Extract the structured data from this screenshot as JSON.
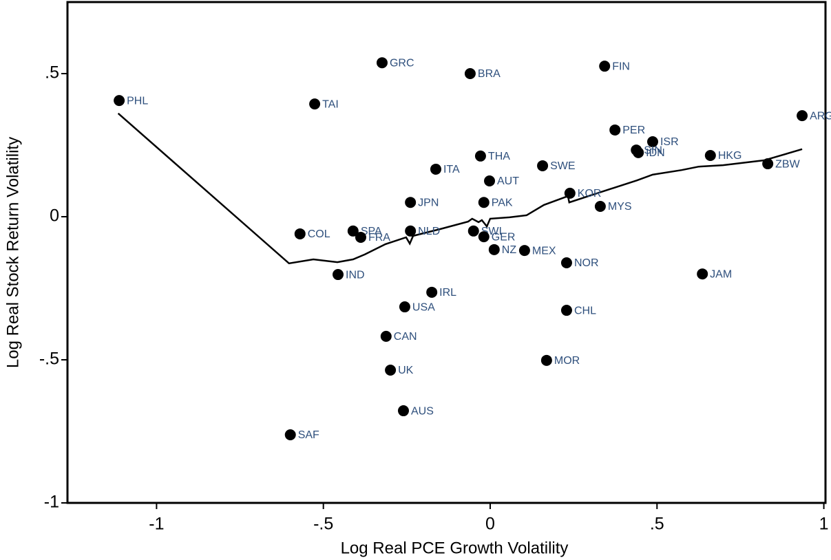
{
  "chart_data": {
    "type": "scatter",
    "xlabel": "Log Real PCE Growth Volatility",
    "ylabel": "Log Real Stock Return Volatility",
    "xlim": [
      -1.267,
      1.005
    ],
    "ylim": [
      -1,
      0.75
    ],
    "xticks": [
      -1,
      {
        "value": -0.5,
        "label": "-.5"
      },
      0,
      {
        "value": 0.5,
        "label": ".5"
      },
      1
    ],
    "yticks": [
      -1,
      {
        "value": -0.5,
        "label": "-.5"
      },
      0,
      {
        "value": 0.5,
        "label": ".5"
      }
    ],
    "grid": false,
    "points": {
      "color": "#000000",
      "labels": [
        "PHL",
        "TAI",
        "GRC",
        "BRA",
        "FIN",
        "ARG",
        "PER",
        "ISR",
        "SIN",
        "IDN",
        "HKG",
        "ZBW",
        "THA",
        "SWE",
        "ITA",
        "AUT",
        "KOR",
        "MYS",
        "JPN",
        "PAK",
        "COL",
        "SPA",
        "FRA",
        "NLD",
        "SWI",
        "GER",
        "NZ",
        "MEX",
        "NOR",
        "IND",
        "JAM",
        "IRL",
        "USA",
        "CHL",
        "CAN",
        "MOR",
        "UK",
        "AUS",
        "SAF"
      ],
      "x": [
        -1.112,
        -0.526,
        -0.324,
        -0.06,
        0.343,
        0.935,
        0.374,
        0.487,
        0.438,
        0.444,
        0.66,
        0.832,
        -0.029,
        0.157,
        -0.163,
        -0.002,
        0.239,
        0.33,
        -0.239,
        -0.019,
        -0.57,
        -0.411,
        -0.388,
        -0.239,
        -0.05,
        -0.019,
        0.012,
        0.103,
        0.229,
        -0.456,
        0.636,
        -0.175,
        -0.256,
        0.229,
        -0.312,
        0.169,
        -0.299,
        -0.26,
        -0.599
      ],
      "y": [
        0.406,
        0.394,
        0.538,
        0.5,
        0.526,
        0.353,
        0.303,
        0.262,
        0.233,
        0.224,
        0.214,
        0.185,
        0.212,
        0.178,
        0.166,
        0.125,
        0.082,
        0.036,
        0.05,
        0.05,
        -0.06,
        -0.05,
        -0.072,
        -0.05,
        -0.05,
        -0.07,
        -0.115,
        -0.118,
        -0.161,
        -0.202,
        -0.2,
        -0.264,
        -0.315,
        -0.327,
        -0.418,
        -0.502,
        -0.536,
        -0.678,
        -0.762
      ]
    },
    "fit": {
      "color": "#000000",
      "x": [
        -1.115,
        -0.603,
        -0.53,
        -0.458,
        -0.411,
        -0.376,
        -0.314,
        -0.252,
        -0.241,
        -0.231,
        -0.149,
        -0.066,
        -0.054,
        -0.035,
        -0.025,
        -0.01,
        0.0,
        0.058,
        0.109,
        0.161,
        0.233,
        0.237,
        0.326,
        0.44,
        0.487,
        0.574,
        0.625,
        0.698,
        0.821,
        0.935
      ],
      "y": [
        0.361,
        -0.163,
        -0.149,
        -0.159,
        -0.149,
        -0.132,
        -0.096,
        -0.072,
        -0.094,
        -0.067,
        -0.043,
        -0.017,
        -0.007,
        -0.019,
        -0.012,
        -0.034,
        -0.007,
        -0.002,
        0.005,
        0.041,
        0.072,
        0.05,
        0.084,
        0.127,
        0.147,
        0.163,
        0.175,
        0.18,
        0.197,
        0.236
      ]
    }
  }
}
